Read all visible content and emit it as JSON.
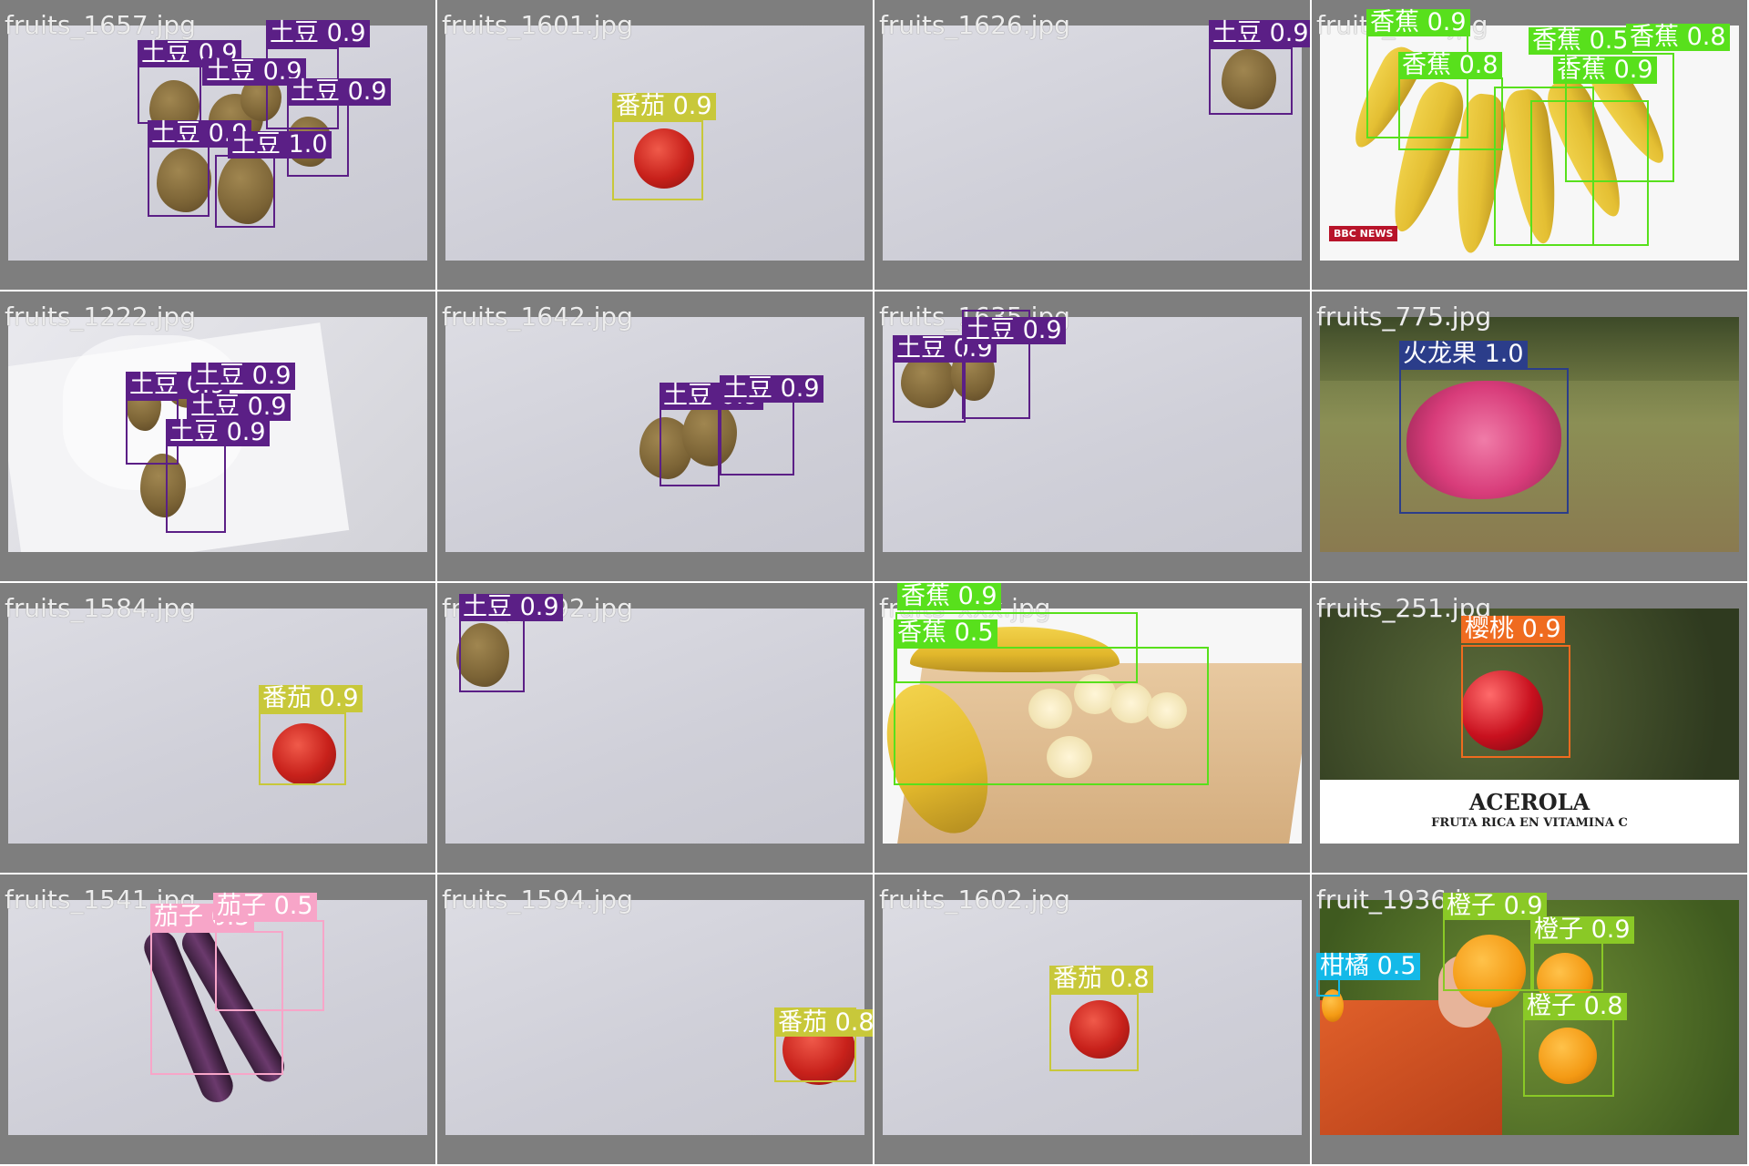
{
  "colors": {
    "土豆": "#5b1f86",
    "番茄": "#c8c83a",
    "香蕉": "#58e01c",
    "火龙果": "#2b3d8a",
    "樱桃": "#ef6b1f",
    "茄子": "#f7a5c8",
    "橙子": "#8ac926",
    "柑橘": "#14b9e8"
  },
  "tiles": [
    {
      "file": "fruits_1657.jpg",
      "detections": [
        {
          "label": "土豆 0.9"
        },
        {
          "label": "土豆 0.9"
        },
        {
          "label": "土豆 0.9"
        },
        {
          "label": "土豆 0.9"
        },
        {
          "label": "土豆 0.9"
        },
        {
          "label": "土豆 1.0"
        }
      ]
    },
    {
      "file": "fruits_1601.jpg",
      "detections": [
        {
          "label": "番茄 0.9"
        }
      ]
    },
    {
      "file": "fruits_1626.jpg",
      "detections": [
        {
          "label": "土豆 0.9"
        }
      ]
    },
    {
      "file": "fruits_xxx.jpg",
      "detections": [
        {
          "label": "香蕉 0.9"
        },
        {
          "label": "香蕉 0.8"
        },
        {
          "label": "香蕉 0.5"
        },
        {
          "label": "香蕉 0.9"
        },
        {
          "label": "香蕉 0.8"
        }
      ],
      "watermark": "BBC NEWS"
    },
    {
      "file": "fruits_1222.jpg",
      "detections": [
        {
          "label": "土豆 0.9"
        },
        {
          "label": "土豆 0.9"
        },
        {
          "label": "土豆 0.9"
        },
        {
          "label": "土豆 0.9"
        }
      ]
    },
    {
      "file": "fruits_1642.jpg",
      "detections": [
        {
          "label": "土豆 0.9"
        },
        {
          "label": "土豆 0.9"
        }
      ]
    },
    {
      "file": "fruits_1635.jpg",
      "detections": [
        {
          "label": "土豆 0.9"
        },
        {
          "label": "土豆 0.9"
        }
      ]
    },
    {
      "file": "fruits_775.jpg",
      "detections": [
        {
          "label": "火龙果 1.0"
        }
      ]
    },
    {
      "file": "fruits_1584.jpg",
      "detections": [
        {
          "label": "番茄 0.9"
        }
      ]
    },
    {
      "file": "fruits_1592.jpg",
      "detections": [
        {
          "label": "土豆 0.9"
        }
      ]
    },
    {
      "file": "fruits_xxx.jpg",
      "detections": [
        {
          "label": "香蕉 0.9"
        },
        {
          "label": "香蕉 0.5"
        }
      ]
    },
    {
      "file": "fruits_251.jpg",
      "detections": [
        {
          "label": "樱桃 0.9"
        }
      ],
      "caption_title": "ACEROLA",
      "caption_sub": "FRUTA RICA EN VITAMINA C"
    },
    {
      "file": "fruits_1541.jpg",
      "detections": [
        {
          "label": "茄子 0.5"
        },
        {
          "label": "茄子 0.5"
        }
      ]
    },
    {
      "file": "fruits_1594.jpg",
      "detections": [
        {
          "label": "番茄 0.8"
        }
      ]
    },
    {
      "file": "fruits_1602.jpg",
      "detections": [
        {
          "label": "番茄 0.8"
        }
      ]
    },
    {
      "file": "fruit_1936.jpg",
      "detections": [
        {
          "label": "橙子 0.9"
        },
        {
          "label": "橙子 0.9"
        },
        {
          "label": "柑橘 0.5"
        },
        {
          "label": "橙子 0.8"
        }
      ]
    }
  ]
}
